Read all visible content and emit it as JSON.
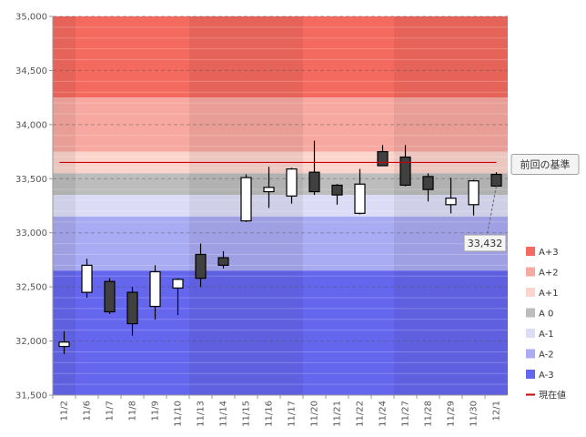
{
  "chart_data": {
    "type": "candlestick",
    "categories": [
      "11/2",
      "11/6",
      "11/7",
      "11/8",
      "11/9",
      "11/10",
      "11/13",
      "11/14",
      "11/15",
      "11/16",
      "11/17",
      "11/20",
      "11/21",
      "11/22",
      "11/24",
      "11/27",
      "11/28",
      "11/29",
      "11/30",
      "12/1"
    ],
    "ohlc": [
      {
        "open": 31950,
        "high": 32090,
        "low": 31880,
        "close": 31990
      },
      {
        "open": 32450,
        "high": 32760,
        "low": 32400,
        "close": 32700
      },
      {
        "open": 32550,
        "high": 32580,
        "low": 32250,
        "close": 32270
      },
      {
        "open": 32450,
        "high": 32500,
        "low": 32050,
        "close": 32160
      },
      {
        "open": 32320,
        "high": 32700,
        "low": 32200,
        "close": 32640
      },
      {
        "open": 32490,
        "high": 32580,
        "low": 32240,
        "close": 32570
      },
      {
        "open": 32800,
        "high": 32900,
        "low": 32500,
        "close": 32580
      },
      {
        "open": 32770,
        "high": 32830,
        "low": 32670,
        "close": 32700
      },
      {
        "open": 33110,
        "high": 33540,
        "low": 33100,
        "close": 33510
      },
      {
        "open": 33380,
        "high": 33610,
        "low": 33230,
        "close": 33420
      },
      {
        "open": 33340,
        "high": 33600,
        "low": 33270,
        "close": 33590
      },
      {
        "open": 33560,
        "high": 33850,
        "low": 33350,
        "close": 33380
      },
      {
        "open": 33440,
        "high": 33450,
        "low": 33260,
        "close": 33350
      },
      {
        "open": 33180,
        "high": 33590,
        "low": 33170,
        "close": 33450
      },
      {
        "open": 33750,
        "high": 33810,
        "low": 33620,
        "close": 33620
      },
      {
        "open": 33700,
        "high": 33810,
        "low": 33430,
        "close": 33440
      },
      {
        "open": 33520,
        "high": 33550,
        "low": 33290,
        "close": 33400
      },
      {
        "open": 33260,
        "high": 33510,
        "low": 33180,
        "close": 33320
      },
      {
        "open": 33260,
        "high": 33490,
        "low": 33160,
        "close": 33480
      },
      {
        "open": 33540,
        "high": 33560,
        "low": 33420,
        "close": 33432
      }
    ],
    "ylim": [
      31500,
      35000
    ],
    "yticks": [
      31500,
      32000,
      32500,
      33000,
      33500,
      34000,
      34500,
      35000
    ],
    "ytick_labels": [
      "31,500",
      "32,000",
      "32,500",
      "33,000",
      "33,500",
      "34,000",
      "34,500",
      "35,000"
    ],
    "bands": [
      {
        "name": "A+3",
        "from": 34250,
        "to": 35000,
        "color": "#f46a5e"
      },
      {
        "name": "A+2",
        "from": 33750,
        "to": 34250,
        "color": "#f7a8a0"
      },
      {
        "name": "A+1",
        "from": 33550,
        "to": 33750,
        "color": "#fbd4cc"
      },
      {
        "name": "A 0",
        "from": 33350,
        "to": 33550,
        "color": "#bdbdbd"
      },
      {
        "name": "A-1",
        "from": 33150,
        "to": 33350,
        "color": "#dcdcf6"
      },
      {
        "name": "A-2",
        "from": 32650,
        "to": 33150,
        "color": "#a9abf3"
      },
      {
        "name": "A-3",
        "from": 31500,
        "to": 32650,
        "color": "#6466ee"
      }
    ],
    "reference_line": {
      "value": 33650,
      "label": "前回の基準",
      "color": "#cc0000"
    },
    "current_value": {
      "value": 33432,
      "label": "33,432"
    },
    "legend": {
      "position": "right",
      "items": [
        {
          "label": "A+3",
          "color": "#f46a5e",
          "kind": "box"
        },
        {
          "label": "A+2",
          "color": "#f7a8a0",
          "kind": "box"
        },
        {
          "label": "A+1",
          "color": "#fbd4cc",
          "kind": "box"
        },
        {
          "label": "A 0",
          "color": "#bdbdbd",
          "kind": "box"
        },
        {
          "label": "A-1",
          "color": "#dcdcf6",
          "kind": "box"
        },
        {
          "label": "A-2",
          "color": "#a9abf3",
          "kind": "box"
        },
        {
          "label": "A-3",
          "color": "#6466ee",
          "kind": "box"
        },
        {
          "label": "現在値",
          "color": "#cc0000",
          "kind": "line"
        }
      ]
    },
    "grid": true,
    "up_color": "#ffffff",
    "down_color": "#404040"
  }
}
